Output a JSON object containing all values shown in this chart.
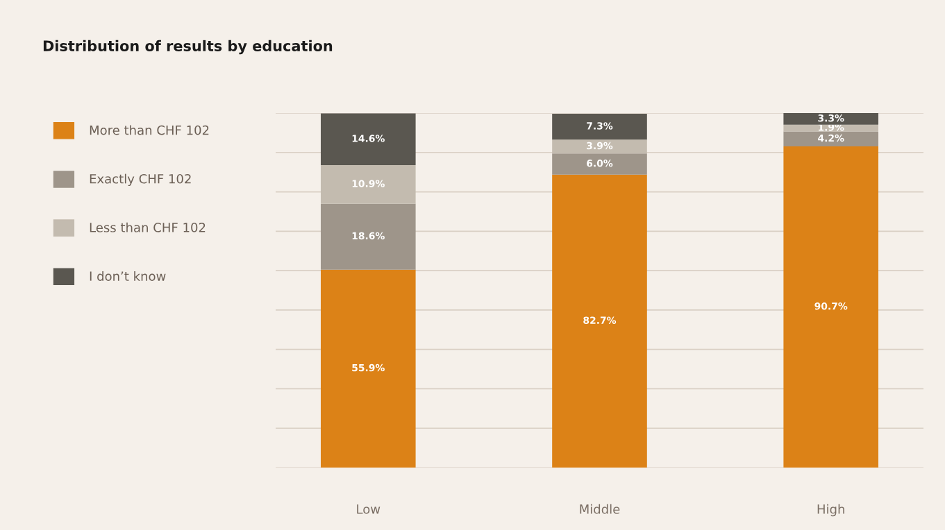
{
  "chart_data": {
    "type": "bar",
    "title": "Distribution of results by education",
    "categories": [
      "Low",
      "Middle",
      "High"
    ],
    "stacked": true,
    "legend": "left",
    "grid": "y",
    "tick_labels": "x",
    "series": [
      {
        "name": "More than CHF 102",
        "color": "#dc8217",
        "values": [
          55.9,
          82.7,
          90.7
        ],
        "value_labels": [
          "55.9%",
          "82.7%",
          "90.7%"
        ]
      },
      {
        "name": "Exactly CHF 102",
        "color": "#9e958a",
        "values": [
          18.6,
          6.0,
          4.2
        ],
        "value_labels": [
          "18.6%",
          "6.0%",
          "4.2%"
        ]
      },
      {
        "name": "Less than CHF 102",
        "color": "#c3bbaf",
        "values": [
          10.9,
          3.9,
          1.9
        ],
        "value_labels": [
          "10.9%",
          "3.9%",
          "1.9%"
        ]
      },
      {
        "name": "I don’t know",
        "color": "#5a5750",
        "values": [
          14.6,
          7.3,
          3.3
        ],
        "value_labels": [
          "14.6%",
          "7.3%",
          "3.3%"
        ]
      }
    ]
  }
}
